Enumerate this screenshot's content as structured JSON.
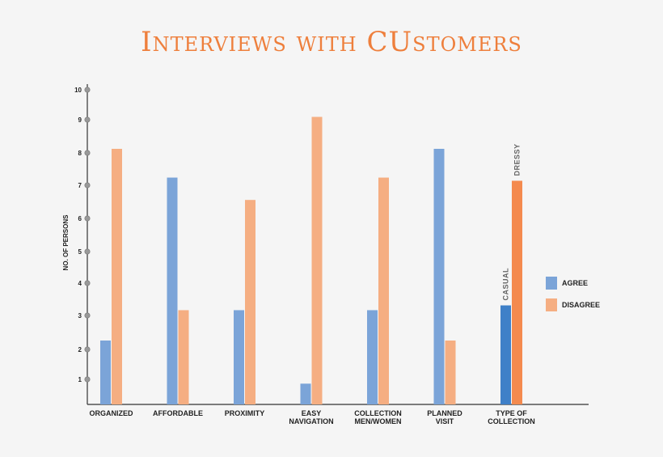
{
  "colors": {
    "agree": "#7ba4d8",
    "disagree": "#f5ae82",
    "agree_dark": "#3f80c8",
    "disagree_dark": "#f48a4e",
    "title": "#ee7f3c",
    "axis": "#333333"
  },
  "chart_data": {
    "type": "bar",
    "title": "Interviews with CUstomers",
    "xlabel": "",
    "ylabel": "NO. OF PERSONS",
    "ylim": [
      0,
      10
    ],
    "yticks": [
      1,
      2,
      3,
      4,
      5,
      6,
      7,
      8,
      9,
      10
    ],
    "categories": [
      [
        "ORGANIZED"
      ],
      [
        "AFFORDABLE"
      ],
      [
        "PROXIMITY"
      ],
      [
        "EASY",
        "NAVIGATION"
      ],
      [
        "COLLECTION",
        "MEN/WOMEN"
      ],
      [
        "PLANNED",
        "VISIT"
      ],
      [
        "TYPE OF",
        "COLLECTION"
      ]
    ],
    "series": [
      {
        "name": "AGREE",
        "values": [
          2,
          7.1,
          2.95,
          0.65,
          2.95,
          8,
          3.1
        ]
      },
      {
        "name": "DISAGREE",
        "values": [
          8,
          2.95,
          6.4,
          9,
          7.1,
          2,
          7
        ]
      }
    ],
    "highlighted_category_index": 6,
    "annotations": [
      {
        "text": "CASUAL",
        "series": 0,
        "category": 6
      },
      {
        "text": "DRESSY",
        "series": 1,
        "category": 6
      }
    ],
    "legend": {
      "position": "right",
      "entries": [
        "AGREE",
        "DISAGREE"
      ]
    },
    "grid": false
  }
}
